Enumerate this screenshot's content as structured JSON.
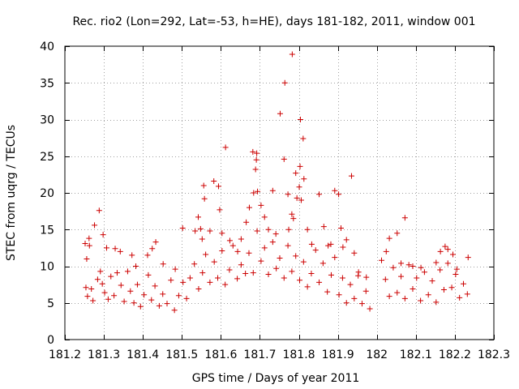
{
  "chart_data": {
    "type": "scatter",
    "title": "Rec. rio2 (Lon=292, Lat=-53, h=HE), days 181-182, 2011, window 001",
    "xlabel": "GPS time / Days of year 2011",
    "ylabel": "STEC from uqrg / TECUs",
    "xlim": [
      181.2,
      182.3
    ],
    "ylim": [
      0,
      40
    ],
    "xticks": [
      181.2,
      181.3,
      181.4,
      181.5,
      181.6,
      181.7,
      181.8,
      181.9,
      182,
      182.1,
      182.2,
      182.3
    ],
    "xtick_labels": [
      "181.2",
      "181.3",
      "181.4",
      "181.5",
      "181.6",
      "181.7",
      "181.8",
      "181.9",
      "182",
      "182.1",
      "182.2",
      "182.3"
    ],
    "yticks": [
      0,
      5,
      10,
      15,
      20,
      25,
      30,
      35,
      40
    ],
    "ytick_labels": [
      "0",
      "5",
      "10",
      "15",
      "20",
      "25",
      "30",
      "35",
      "40"
    ],
    "grid": true,
    "marker": "+",
    "color": "#cc0000",
    "series": [
      {
        "name": "STEC",
        "points": [
          [
            181.252,
            13.1
          ],
          [
            181.256,
            11.0
          ],
          [
            181.262,
            13.8
          ],
          [
            181.263,
            12.8
          ],
          [
            181.276,
            15.6
          ],
          [
            181.288,
            17.6
          ],
          [
            181.298,
            14.3
          ],
          [
            181.307,
            12.5
          ],
          [
            181.329,
            12.4
          ],
          [
            181.342,
            12.0
          ],
          [
            181.372,
            11.5
          ],
          [
            181.382,
            10.0
          ],
          [
            181.412,
            11.5
          ],
          [
            181.424,
            12.4
          ],
          [
            181.433,
            13.3
          ],
          [
            181.452,
            10.3
          ],
          [
            181.483,
            9.6
          ],
          [
            181.502,
            15.2
          ],
          [
            181.534,
            14.8
          ],
          [
            181.542,
            16.7
          ],
          [
            181.548,
            15.1
          ],
          [
            181.552,
            13.7
          ],
          [
            181.556,
            21.0
          ],
          [
            181.558,
            19.2
          ],
          [
            181.572,
            14.8
          ],
          [
            181.582,
            21.6
          ],
          [
            181.594,
            20.9
          ],
          [
            181.597,
            17.7
          ],
          [
            181.603,
            14.5
          ],
          [
            181.612,
            26.2
          ],
          [
            181.623,
            13.5
          ],
          [
            181.643,
            12.0
          ],
          [
            181.652,
            13.7
          ],
          [
            181.665,
            16.0
          ],
          [
            181.673,
            18.0
          ],
          [
            181.682,
            25.6
          ],
          [
            181.684,
            20.0
          ],
          [
            181.689,
            23.2
          ],
          [
            181.691,
            24.5
          ],
          [
            181.692,
            25.4
          ],
          [
            181.694,
            20.2
          ],
          [
            181.703,
            18.3
          ],
          [
            181.712,
            16.7
          ],
          [
            181.722,
            15.0
          ],
          [
            181.733,
            20.3
          ],
          [
            181.741,
            14.4
          ],
          [
            181.752,
            30.8
          ],
          [
            181.762,
            24.6
          ],
          [
            181.764,
            35.0
          ],
          [
            181.772,
            19.8
          ],
          [
            181.774,
            15.0
          ],
          [
            181.782,
            17.1
          ],
          [
            181.783,
            38.9
          ],
          [
            181.786,
            16.5
          ],
          [
            181.792,
            22.7
          ],
          [
            181.795,
            19.3
          ],
          [
            181.801,
            20.8
          ],
          [
            181.803,
            23.6
          ],
          [
            181.804,
            30.0
          ],
          [
            181.806,
            19.0
          ],
          [
            181.811,
            27.4
          ],
          [
            181.813,
            21.9
          ],
          [
            181.822,
            15.0
          ],
          [
            181.833,
            13.0
          ],
          [
            181.852,
            19.8
          ],
          [
            181.864,
            15.4
          ],
          [
            181.875,
            12.8
          ],
          [
            181.882,
            13.0
          ],
          [
            181.892,
            20.3
          ],
          [
            181.902,
            19.8
          ],
          [
            181.908,
            15.2
          ],
          [
            181.913,
            12.6
          ],
          [
            181.922,
            13.6
          ],
          [
            181.935,
            22.3
          ],
          [
            181.942,
            11.8
          ],
          [
            181.953,
            9.2
          ],
          [
            181.973,
            8.5
          ],
          [
            182.012,
            10.8
          ],
          [
            182.024,
            12.0
          ],
          [
            182.032,
            13.8
          ],
          [
            182.052,
            14.5
          ],
          [
            182.062,
            10.4
          ],
          [
            182.072,
            16.6
          ],
          [
            182.092,
            10.0
          ],
          [
            182.113,
            9.8
          ],
          [
            182.152,
            10.5
          ],
          [
            182.163,
            12.0
          ],
          [
            182.175,
            12.7
          ],
          [
            182.182,
            12.3
          ],
          [
            182.195,
            11.6
          ],
          [
            182.205,
            9.6
          ],
          [
            182.234,
            11.2
          ],
          [
            181.254,
            7.1
          ],
          [
            181.258,
            5.9
          ],
          [
            181.268,
            6.9
          ],
          [
            181.272,
            5.3
          ],
          [
            181.284,
            8.2
          ],
          [
            181.291,
            9.3
          ],
          [
            181.296,
            7.6
          ],
          [
            181.302,
            6.4
          ],
          [
            181.311,
            5.5
          ],
          [
            181.318,
            8.6
          ],
          [
            181.326,
            6.0
          ],
          [
            181.334,
            9.1
          ],
          [
            181.344,
            7.4
          ],
          [
            181.352,
            5.2
          ],
          [
            181.361,
            9.3
          ],
          [
            181.368,
            6.6
          ],
          [
            181.377,
            5.0
          ],
          [
            181.386,
            7.5
          ],
          [
            181.394,
            4.5
          ],
          [
            181.403,
            6.1
          ],
          [
            181.414,
            8.8
          ],
          [
            181.422,
            5.4
          ],
          [
            181.431,
            7.3
          ],
          [
            181.442,
            4.6
          ],
          [
            181.451,
            6.2
          ],
          [
            181.462,
            4.9
          ],
          [
            181.472,
            8.1
          ],
          [
            181.481,
            4.0
          ],
          [
            181.492,
            6.0
          ],
          [
            181.503,
            7.8
          ],
          [
            181.512,
            5.6
          ],
          [
            181.521,
            8.4
          ],
          [
            181.532,
            10.3
          ],
          [
            181.543,
            6.9
          ],
          [
            181.553,
            9.1
          ],
          [
            181.561,
            11.6
          ],
          [
            181.572,
            7.8
          ],
          [
            181.583,
            10.6
          ],
          [
            181.592,
            8.4
          ],
          [
            181.603,
            12.1
          ],
          [
            181.611,
            7.5
          ],
          [
            181.622,
            9.5
          ],
          [
            181.631,
            12.8
          ],
          [
            181.642,
            8.3
          ],
          [
            181.652,
            10.2
          ],
          [
            181.663,
            9.0
          ],
          [
            181.672,
            11.8
          ],
          [
            181.683,
            9.1
          ],
          [
            181.693,
            14.8
          ],
          [
            181.703,
            10.7
          ],
          [
            181.712,
            12.5
          ],
          [
            181.722,
            8.9
          ],
          [
            181.733,
            13.3
          ],
          [
            181.742,
            9.7
          ],
          [
            181.751,
            11.1
          ],
          [
            181.762,
            8.4
          ],
          [
            181.772,
            12.8
          ],
          [
            181.782,
            9.3
          ],
          [
            181.792,
            11.4
          ],
          [
            181.802,
            8.1
          ],
          [
            181.812,
            10.6
          ],
          [
            181.822,
            7.2
          ],
          [
            181.832,
            9.0
          ],
          [
            181.843,
            12.2
          ],
          [
            181.852,
            7.8
          ],
          [
            181.862,
            10.4
          ],
          [
            181.873,
            6.5
          ],
          [
            181.883,
            8.8
          ],
          [
            181.892,
            11.2
          ],
          [
            181.903,
            6.1
          ],
          [
            181.912,
            8.4
          ],
          [
            181.922,
            5.0
          ],
          [
            181.932,
            7.5
          ],
          [
            181.942,
            5.6
          ],
          [
            181.952,
            8.7
          ],
          [
            181.962,
            4.9
          ],
          [
            181.972,
            6.6
          ],
          [
            181.982,
            4.2
          ],
          [
            182.022,
            8.2
          ],
          [
            182.032,
            5.9
          ],
          [
            182.042,
            9.8
          ],
          [
            182.052,
            6.4
          ],
          [
            182.062,
            8.6
          ],
          [
            182.072,
            5.6
          ],
          [
            182.082,
            10.2
          ],
          [
            182.092,
            6.9
          ],
          [
            182.102,
            8.4
          ],
          [
            182.112,
            5.3
          ],
          [
            182.122,
            9.2
          ],
          [
            182.132,
            6.1
          ],
          [
            182.142,
            8.0
          ],
          [
            182.152,
            5.1
          ],
          [
            182.162,
            9.5
          ],
          [
            182.172,
            6.8
          ],
          [
            182.182,
            10.4
          ],
          [
            182.192,
            7.1
          ],
          [
            182.202,
            8.9
          ],
          [
            182.212,
            5.7
          ],
          [
            182.222,
            7.6
          ],
          [
            182.232,
            6.2
          ]
        ]
      }
    ]
  }
}
